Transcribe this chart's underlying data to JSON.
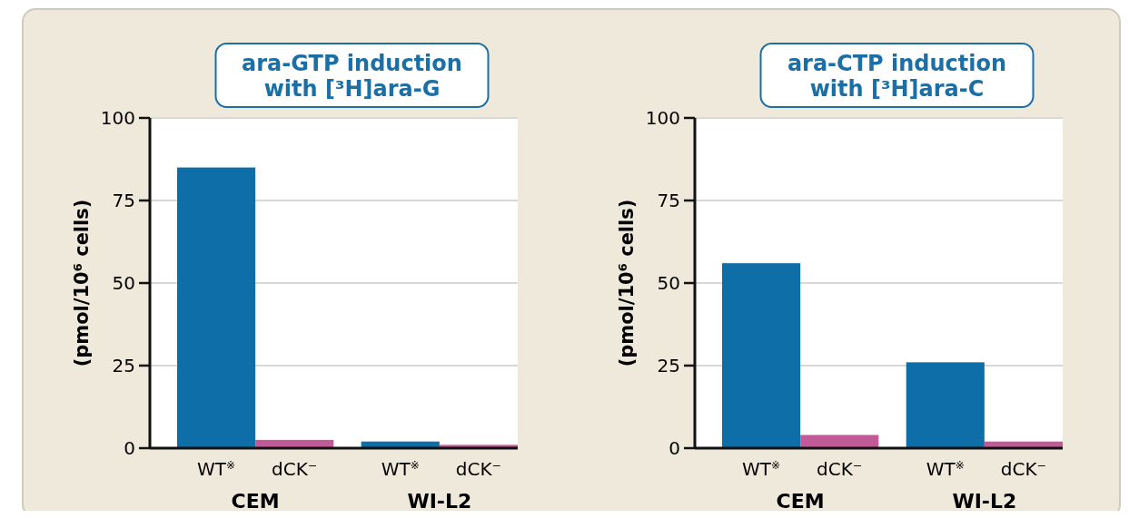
{
  "chart_data": [
    {
      "type": "bar",
      "title": "ara-GTP induction\nwith [³H]ara-G",
      "ylabel": "(pmol/10⁶ cells)",
      "categories": [
        "CEM",
        "WI-L2"
      ],
      "series": [
        {
          "name": "WT$^{※}$",
          "color": "#0e6fa8",
          "values": [
            85,
            2
          ]
        },
        {
          "name": "dCK⁻",
          "color": "#c25a98",
          "values": [
            2.5,
            1
          ]
        }
      ],
      "ylim": [
        0,
        100
      ],
      "yticks": [
        0,
        25,
        50,
        75,
        100
      ],
      "grid": "y"
    },
    {
      "type": "bar",
      "title": "ara-CTP induction\nwith [³H]ara-C",
      "ylabel": "(pmol/10⁶ cells)",
      "categories": [
        "CEM",
        "WI-L2"
      ],
      "series": [
        {
          "name": "WT$^{※}$",
          "color": "#0e6fa8",
          "values": [
            56,
            26
          ]
        },
        {
          "name": "dCK⁻",
          "color": "#c25a98",
          "values": [
            4,
            2
          ]
        }
      ],
      "ylim": [
        0,
        100
      ],
      "yticks": [
        0,
        25,
        50,
        75,
        100
      ],
      "grid": "y"
    }
  ]
}
